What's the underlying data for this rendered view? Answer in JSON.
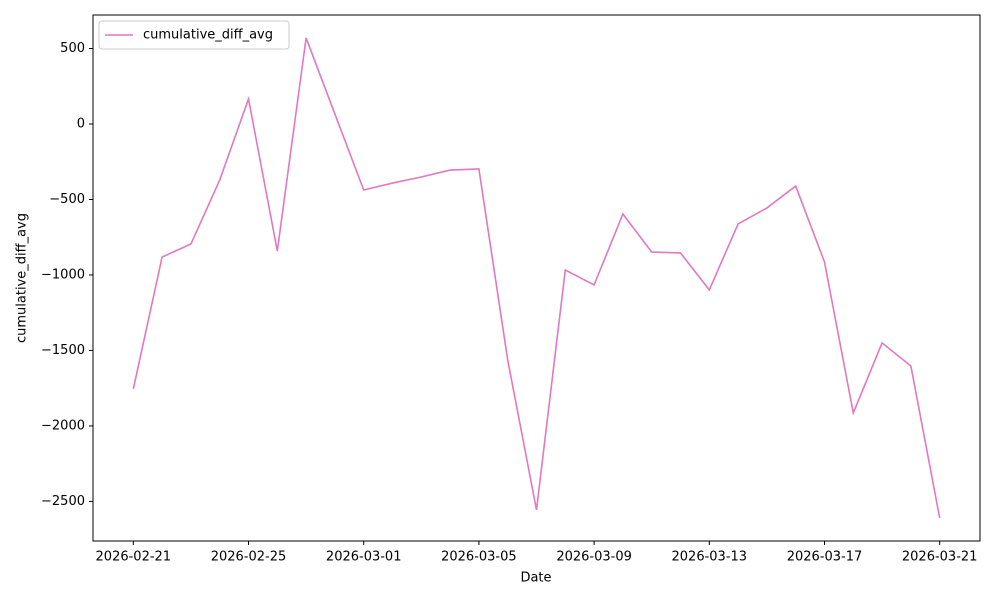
{
  "chart_data": {
    "type": "line",
    "x": [
      "2026-02-21",
      "2026-02-22",
      "2026-02-23",
      "2026-02-24",
      "2026-02-25",
      "2026-02-26",
      "2026-02-27",
      "2026-02-28",
      "2026-03-01",
      "2026-03-02",
      "2026-03-03",
      "2026-03-04",
      "2026-03-05",
      "2026-03-06",
      "2026-03-07",
      "2026-03-08",
      "2026-03-09",
      "2026-03-10",
      "2026-03-11",
      "2026-03-12",
      "2026-03-13",
      "2026-03-14",
      "2026-03-15",
      "2026-03-16",
      "2026-03-17",
      "2026-03-18",
      "2026-03-19",
      "2026-03-20",
      "2026-03-21"
    ],
    "series": [
      {
        "name": "cumulative_diff_avg",
        "color": "#e377c2",
        "values": [
          -1755,
          -881,
          -795,
          -371,
          166,
          -841,
          570,
          66,
          -437,
          -391,
          -351,
          -305,
          -298,
          -1563,
          -2556,
          -967,
          -1066,
          -596,
          -848,
          -854,
          -1099,
          -662,
          -556,
          -411,
          -914,
          -1914,
          -1450,
          -1603,
          -2609
        ]
      }
    ],
    "xlabel": "Date",
    "ylabel": "cumulative_diff_avg",
    "xticks": [
      "2026-02-21",
      "2026-02-25",
      "2026-03-01",
      "2026-03-05",
      "2026-03-09",
      "2026-03-13",
      "2026-03-17",
      "2026-03-21"
    ],
    "ylim": [
      -2762,
      722
    ],
    "yticks": [
      {
        "value": -2500,
        "label": "−2500"
      },
      {
        "value": -2000,
        "label": "−2000"
      },
      {
        "value": -1500,
        "label": "−1500"
      },
      {
        "value": -1000,
        "label": "−1000"
      },
      {
        "value": -500,
        "label": "−500"
      },
      0,
      500
    ],
    "legend": "upper left"
  }
}
